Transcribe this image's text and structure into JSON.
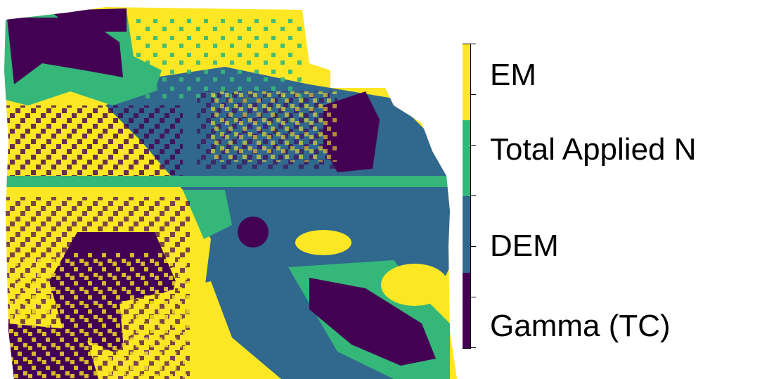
{
  "legend": {
    "categories": [
      {
        "label": "EM",
        "color": "#fde725"
      },
      {
        "label": "Total Applied N",
        "color": "#35b779"
      },
      {
        "label": "DEM",
        "color": "#31688e"
      },
      {
        "label": "Gamma (TC)",
        "color": "#440154"
      }
    ]
  },
  "map": {
    "type": "categorical-raster",
    "background": "#ffffff"
  }
}
